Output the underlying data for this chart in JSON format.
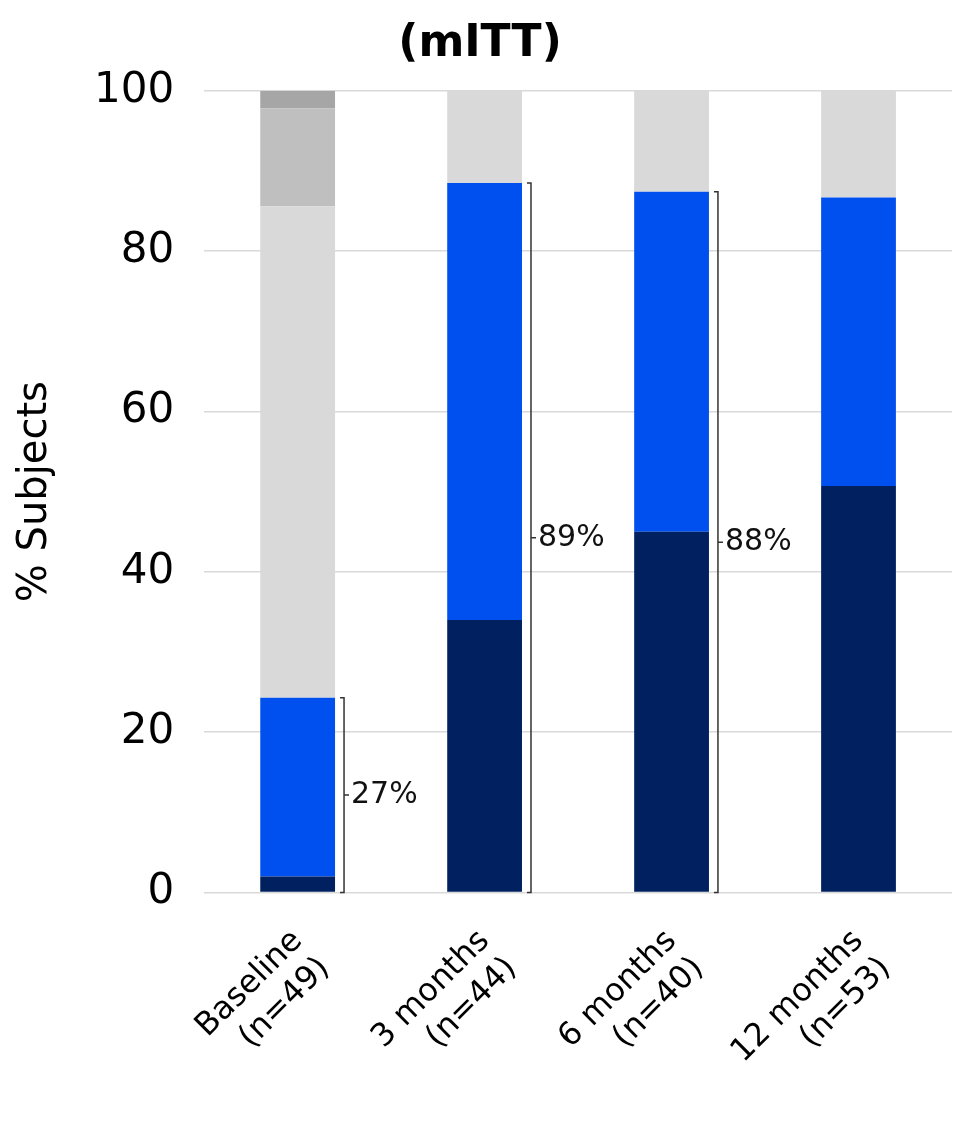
{
  "chart_data": {
    "type": "bar",
    "title": "(mITT)",
    "ylabel": "% Subjects",
    "categories": [
      "Baseline\n(n=49)",
      "3 months\n(n=44)",
      "6 months\n(n=40)",
      "12 months\n(n=53)"
    ],
    "stacked": true,
    "grid": "y",
    "legend": false,
    "ylim": [
      0,
      100
    ],
    "yticks": [
      0,
      20,
      40,
      60,
      80,
      100
    ],
    "series": [
      {
        "color": "#002060",
        "values": [
          2,
          34,
          45,
          50.7
        ]
      },
      {
        "color": "#0050ef",
        "values": [
          22.3,
          54.5,
          42.4,
          36
        ]
      },
      {
        "color": "#d9d9d9",
        "values": [
          61.3,
          11.5,
          12.6,
          13.3
        ]
      },
      {
        "color": "#bfbfbf",
        "values": [
          12.2,
          0,
          0,
          0
        ]
      },
      {
        "color": "#a6a6a6",
        "values": [
          2.2,
          0,
          0,
          0
        ]
      }
    ],
    "annotations": [
      "27%",
      "89%",
      "88%"
    ]
  }
}
